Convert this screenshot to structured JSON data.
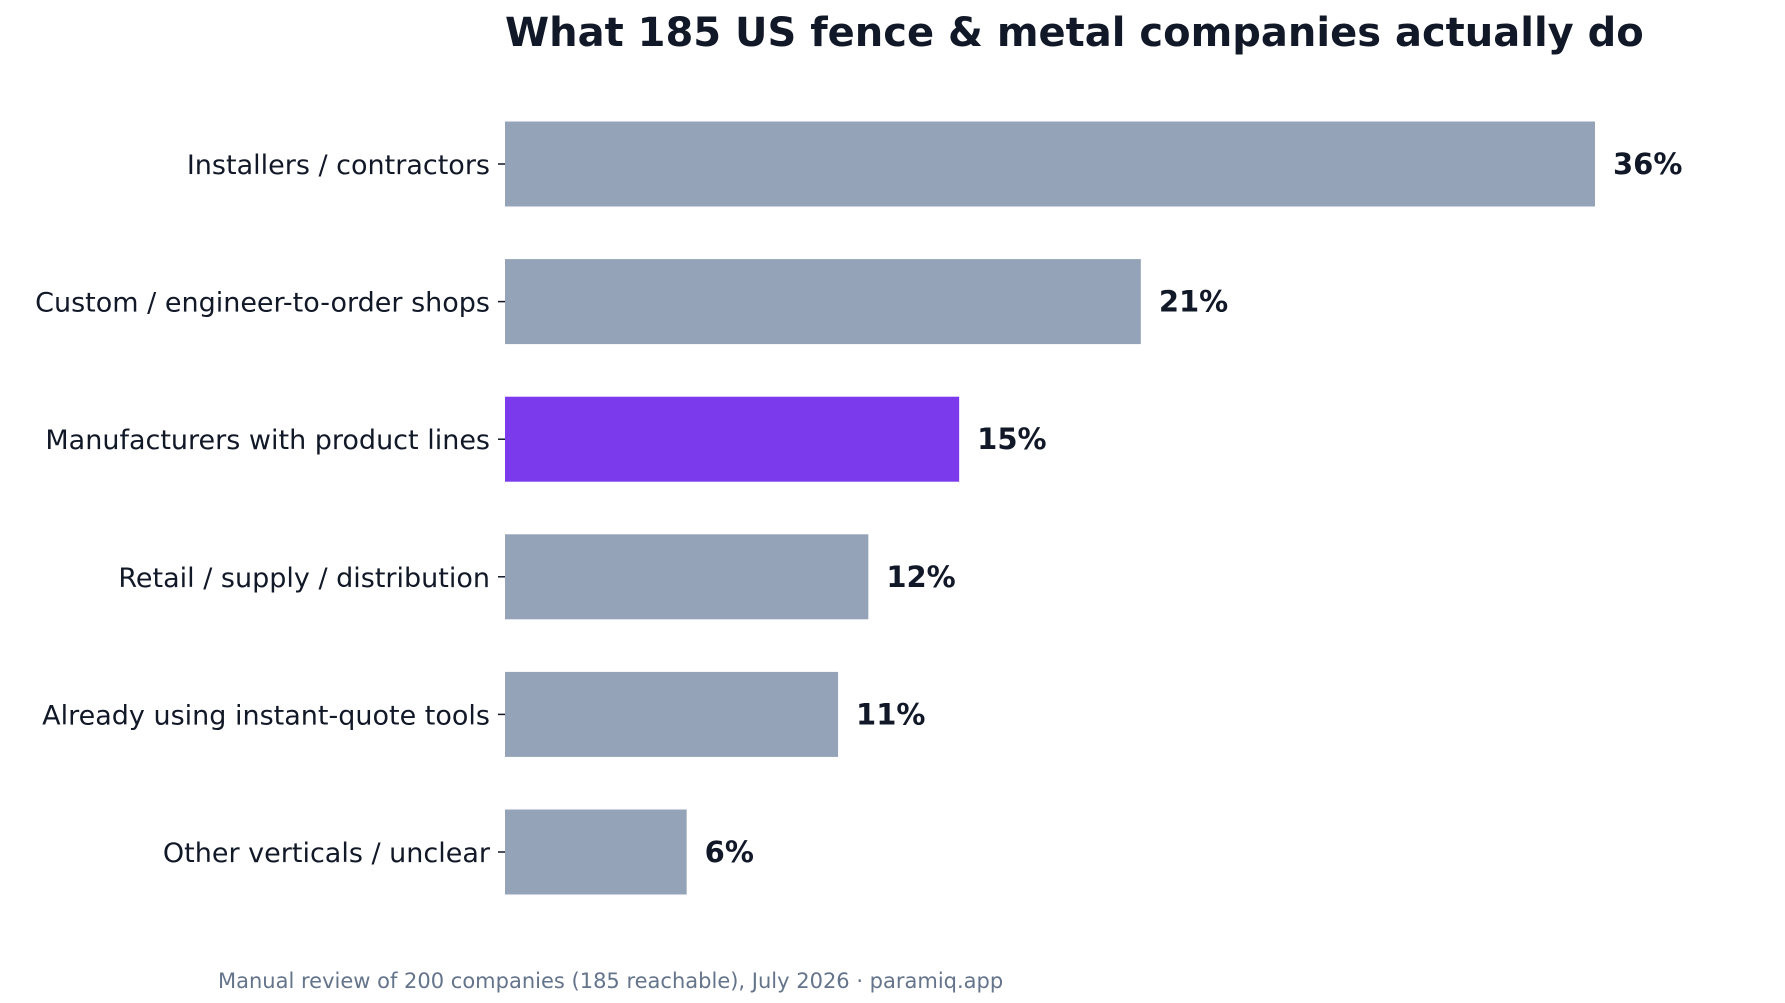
{
  "chart_data": {
    "type": "bar",
    "orientation": "horizontal",
    "title": "What 185 US fence & metal companies actually do",
    "categories": [
      "Installers / contractors",
      "Custom / engineer-to-order shops",
      "Manufacturers with product lines",
      "Retail / supply / distribution",
      "Already using instant-quote tools",
      "Other verticals / unclear"
    ],
    "values": [
      36,
      21,
      15,
      12,
      11,
      6
    ],
    "value_labels": [
      "36%",
      "21%",
      "15%",
      "12%",
      "11%",
      "6%"
    ],
    "xlim": [
      0,
      36
    ],
    "highlight_index": 2,
    "grid": false,
    "legend": "none"
  },
  "colors": {
    "bar": "#94a3b8",
    "highlight": "#7c3aed",
    "text": "#111827",
    "footnote": "#64748b"
  },
  "footnote": "Manual review of 200 companies (185 reachable), July 2026 · paramiq.app"
}
